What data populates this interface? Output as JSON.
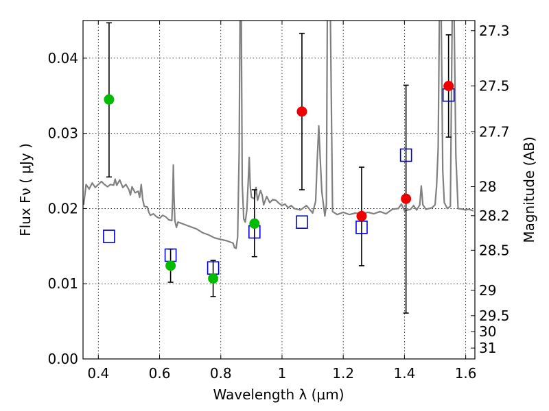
{
  "chart_data": {
    "type": "scatter",
    "xlabel": "Wavelength  λ (μm)",
    "ylabel": "Flux  Fν  ( μJy )",
    "y2label": "Magnitude (AB)",
    "xlim": [
      0.35,
      1.63
    ],
    "ylim": [
      0.0,
      0.045
    ],
    "grid": true,
    "x_ticks": [
      {
        "value": 0.4,
        "label": "0.4"
      },
      {
        "value": 0.6,
        "label": "0.6"
      },
      {
        "value": 0.8,
        "label": "0.8"
      },
      {
        "value": 1.0,
        "label": "1"
      },
      {
        "value": 1.2,
        "label": "1.2"
      },
      {
        "value": 1.4,
        "label": "1.4"
      },
      {
        "value": 1.6,
        "label": "1.6"
      }
    ],
    "y_ticks": [
      {
        "value": 0.0,
        "label": "0.00"
      },
      {
        "value": 0.01,
        "label": "0.01"
      },
      {
        "value": 0.02,
        "label": "0.02"
      },
      {
        "value": 0.03,
        "label": "0.03"
      },
      {
        "value": 0.04,
        "label": "0.04"
      }
    ],
    "y2_ticks": [
      {
        "value": 27.3,
        "label": "27.3"
      },
      {
        "value": 27.5,
        "label": "27.5"
      },
      {
        "value": 27.7,
        "label": "27.7"
      },
      {
        "value": 28.0,
        "label": "28"
      },
      {
        "value": 28.2,
        "label": "28.2"
      },
      {
        "value": 28.5,
        "label": "28.5"
      },
      {
        "value": 29.0,
        "label": "29"
      },
      {
        "value": 29.5,
        "label": "29.5"
      },
      {
        "value": 30.0,
        "label": "30"
      },
      {
        "value": 31.0,
        "label": "31"
      }
    ],
    "colors": {
      "spectrum": "#808080",
      "green_points": "#00bb00",
      "red_points": "#ee0000",
      "model_boxes": "#0000cc",
      "errorbar": "#000000",
      "grid": "#000000"
    },
    "spectrum": [
      [
        0.352,
        0.0205
      ],
      [
        0.36,
        0.0232
      ],
      [
        0.37,
        0.0226
      ],
      [
        0.38,
        0.0234
      ],
      [
        0.39,
        0.0228
      ],
      [
        0.4,
        0.0232
      ],
      [
        0.41,
        0.0236
      ],
      [
        0.42,
        0.0232
      ],
      [
        0.43,
        0.0229
      ],
      [
        0.44,
        0.0232
      ],
      [
        0.45,
        0.0231
      ],
      [
        0.455,
        0.0239
      ],
      [
        0.46,
        0.0231
      ],
      [
        0.47,
        0.0238
      ],
      [
        0.48,
        0.0228
      ],
      [
        0.49,
        0.0232
      ],
      [
        0.5,
        0.0225
      ],
      [
        0.505,
        0.0218
      ],
      [
        0.51,
        0.0229
      ],
      [
        0.52,
        0.0221
      ],
      [
        0.53,
        0.0223
      ],
      [
        0.535,
        0.0215
      ],
      [
        0.54,
        0.0232
      ],
      [
        0.545,
        0.0212
      ],
      [
        0.55,
        0.0203
      ],
      [
        0.56,
        0.0202
      ],
      [
        0.565,
        0.0195
      ],
      [
        0.57,
        0.0191
      ],
      [
        0.58,
        0.0193
      ],
      [
        0.59,
        0.0189
      ],
      [
        0.6,
        0.0187
      ],
      [
        0.61,
        0.0191
      ],
      [
        0.62,
        0.0189
      ],
      [
        0.63,
        0.0185
      ],
      [
        0.64,
        0.0184
      ],
      [
        0.643,
        0.0215
      ],
      [
        0.645,
        0.0258
      ],
      [
        0.647,
        0.0218
      ],
      [
        0.65,
        0.0184
      ],
      [
        0.655,
        0.0175
      ],
      [
        0.66,
        0.0182
      ],
      [
        0.68,
        0.0179
      ],
      [
        0.7,
        0.0176
      ],
      [
        0.72,
        0.0173
      ],
      [
        0.74,
        0.0168
      ],
      [
        0.76,
        0.0165
      ],
      [
        0.78,
        0.0161
      ],
      [
        0.8,
        0.0159
      ],
      [
        0.82,
        0.0157
      ],
      [
        0.84,
        0.0154
      ],
      [
        0.845,
        0.0148
      ],
      [
        0.85,
        0.0147
      ],
      [
        0.855,
        0.0162
      ],
      [
        0.86,
        0.0275
      ],
      [
        0.863,
        0.046
      ],
      [
        0.867,
        0.046
      ],
      [
        0.87,
        0.0232
      ],
      [
        0.875,
        0.0186
      ],
      [
        0.88,
        0.0182
      ],
      [
        0.885,
        0.0198
      ],
      [
        0.89,
        0.024
      ],
      [
        0.893,
        0.0268
      ],
      [
        0.896,
        0.023
      ],
      [
        0.9,
        0.0215
      ],
      [
        0.91,
        0.0213
      ],
      [
        0.915,
        0.0228
      ],
      [
        0.92,
        0.0211
      ],
      [
        0.93,
        0.0224
      ],
      [
        0.935,
        0.0218
      ],
      [
        0.94,
        0.0205
      ],
      [
        0.95,
        0.0216
      ],
      [
        0.96,
        0.0208
      ],
      [
        0.97,
        0.0212
      ],
      [
        0.98,
        0.0211
      ],
      [
        0.99,
        0.0207
      ],
      [
        1.0,
        0.0204
      ],
      [
        1.01,
        0.0206
      ],
      [
        1.02,
        0.0201
      ],
      [
        1.03,
        0.0204
      ],
      [
        1.04,
        0.02
      ],
      [
        1.06,
        0.0198
      ],
      [
        1.08,
        0.0204
      ],
      [
        1.1,
        0.0194
      ],
      [
        1.11,
        0.021
      ],
      [
        1.115,
        0.0265
      ],
      [
        1.12,
        0.031
      ],
      [
        1.125,
        0.0265
      ],
      [
        1.13,
        0.0222
      ],
      [
        1.14,
        0.019
      ],
      [
        1.145,
        0.0205
      ],
      [
        1.148,
        0.046
      ],
      [
        1.158,
        0.046
      ],
      [
        1.165,
        0.0196
      ],
      [
        1.18,
        0.0192
      ],
      [
        1.2,
        0.0195
      ],
      [
        1.22,
        0.0192
      ],
      [
        1.24,
        0.0194
      ],
      [
        1.26,
        0.0192
      ],
      [
        1.28,
        0.0195
      ],
      [
        1.3,
        0.0193
      ],
      [
        1.32,
        0.0196
      ],
      [
        1.34,
        0.0193
      ],
      [
        1.36,
        0.0199
      ],
      [
        1.38,
        0.02
      ],
      [
        1.39,
        0.0206
      ],
      [
        1.4,
        0.0197
      ],
      [
        1.42,
        0.0199
      ],
      [
        1.43,
        0.0204
      ],
      [
        1.44,
        0.0198
      ],
      [
        1.45,
        0.0205
      ],
      [
        1.455,
        0.023
      ],
      [
        1.46,
        0.0205
      ],
      [
        1.47,
        0.0199
      ],
      [
        1.48,
        0.02
      ],
      [
        1.49,
        0.0201
      ],
      [
        1.5,
        0.0205
      ],
      [
        1.505,
        0.023
      ],
      [
        1.51,
        0.028
      ],
      [
        1.514,
        0.046
      ],
      [
        1.52,
        0.046
      ],
      [
        1.525,
        0.025
      ],
      [
        1.53,
        0.0208
      ],
      [
        1.54,
        0.02
      ],
      [
        1.55,
        0.0203
      ],
      [
        1.556,
        0.046
      ],
      [
        1.562,
        0.046
      ],
      [
        1.568,
        0.027
      ],
      [
        1.575,
        0.02
      ],
      [
        1.59,
        0.0199
      ],
      [
        1.6,
        0.0198
      ],
      [
        1.61,
        0.0199
      ],
      [
        1.625,
        0.0197
      ]
    ],
    "green_points": [
      {
        "x": 0.435,
        "y": 0.0345,
        "yerr_low": 0.0242,
        "yerr_high": 0.0447
      },
      {
        "x": 0.636,
        "y": 0.0124,
        "yerr_low": 0.0102,
        "yerr_high": 0.0146
      },
      {
        "x": 0.775,
        "y": 0.0107,
        "yerr_low": 0.0083,
        "yerr_high": 0.0131
      },
      {
        "x": 0.91,
        "y": 0.018,
        "yerr_low": 0.0136,
        "yerr_high": 0.0225
      }
    ],
    "red_points": [
      {
        "x": 1.065,
        "y": 0.0329,
        "yerr_low": 0.0225,
        "yerr_high": 0.0433
      },
      {
        "x": 1.26,
        "y": 0.019,
        "yerr_low": 0.0124,
        "yerr_high": 0.0255
      },
      {
        "x": 1.405,
        "y": 0.0213,
        "yerr_low": 0.0061,
        "yerr_high": 0.0364
      },
      {
        "x": 1.544,
        "y": 0.0363,
        "yerr_low": 0.0295,
        "yerr_high": 0.0431
      }
    ],
    "model_boxes": [
      {
        "x": 0.435,
        "y": 0.0163
      },
      {
        "x": 0.636,
        "y": 0.0138
      },
      {
        "x": 0.775,
        "y": 0.0121
      },
      {
        "x": 0.91,
        "y": 0.0169
      },
      {
        "x": 1.065,
        "y": 0.0182
      },
      {
        "x": 1.26,
        "y": 0.0175
      },
      {
        "x": 1.405,
        "y": 0.0271
      },
      {
        "x": 1.544,
        "y": 0.0351
      }
    ]
  }
}
